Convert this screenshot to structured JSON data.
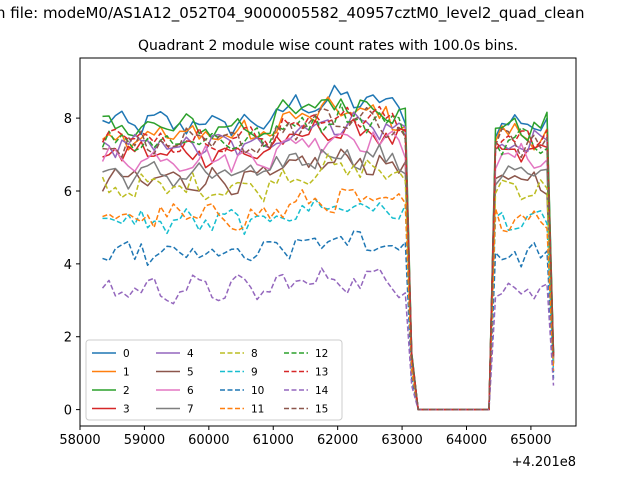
{
  "figure": {
    "suptitle": "n file: modeM0/AS1A12_052T04_9000005582_40957cztM0_level2_quad_clean"
  },
  "chart_data": {
    "type": "line",
    "title": "Quadrant 2 module wise count rates with 100.0s bins.",
    "xlabel": "",
    "ylabel": "",
    "x_offset_label": "+4.201e8",
    "xlim": [
      58000,
      65700
    ],
    "ylim": [
      -0.45,
      9.65
    ],
    "xticks": [
      58000,
      59000,
      60000,
      61000,
      62000,
      63000,
      64000,
      65000
    ],
    "xtick_labels": [
      "58000",
      "59000",
      "60000",
      "61000",
      "62000",
      "63000",
      "64000",
      "65000"
    ],
    "yticks": [
      0,
      2,
      4,
      6,
      8
    ],
    "ytick_labels": [
      "0",
      "2",
      "4",
      "6",
      "8"
    ],
    "grid": false,
    "legend_position": "lower-left",
    "legend_columns": 4,
    "gti_segments": [
      {
        "start": 58350,
        "end": 63150
      },
      {
        "start": 64450,
        "end": 65350
      }
    ],
    "series": [
      {
        "name": "0",
        "color": "#1f77b4",
        "dash": "solid",
        "level_on": 7.85,
        "level_off": 0.0
      },
      {
        "name": "1",
        "color": "#ff7f0e",
        "dash": "solid",
        "level_on": 7.55,
        "level_off": 0.0
      },
      {
        "name": "2",
        "color": "#2ca02c",
        "dash": "solid",
        "level_on": 7.75,
        "level_off": 0.0
      },
      {
        "name": "3",
        "color": "#d62728",
        "dash": "solid",
        "level_on": 7.05,
        "level_off": 0.0
      },
      {
        "name": "4",
        "color": "#9467bd",
        "dash": "solid",
        "level_on": 7.25,
        "level_off": 0.0
      },
      {
        "name": "5",
        "color": "#8c564b",
        "dash": "solid",
        "level_on": 6.3,
        "level_off": 0.0
      },
      {
        "name": "6",
        "color": "#e377c2",
        "dash": "solid",
        "level_on": 6.9,
        "level_off": 0.0
      },
      {
        "name": "7",
        "color": "#7f7f7f",
        "dash": "solid",
        "level_on": 6.45,
        "level_off": 0.0
      },
      {
        "name": "8",
        "color": "#bcbd22",
        "dash": "dashed",
        "level_on": 6.1,
        "level_off": 0.0
      },
      {
        "name": "9",
        "color": "#17becf",
        "dash": "dashed",
        "level_on": 5.15,
        "level_off": 0.0
      },
      {
        "name": "10",
        "color": "#1f77b4",
        "dash": "dashed",
        "level_on": 4.25,
        "level_off": 0.0
      },
      {
        "name": "11",
        "color": "#ff7f0e",
        "dash": "dashed",
        "level_on": 5.3,
        "level_off": 0.0
      },
      {
        "name": "12",
        "color": "#2ca02c",
        "dash": "dashed",
        "level_on": 7.4,
        "level_off": 0.0
      },
      {
        "name": "13",
        "color": "#d62728",
        "dash": "dashed",
        "level_on": 7.45,
        "level_off": 0.0
      },
      {
        "name": "14",
        "color": "#9467bd",
        "dash": "dashed",
        "level_on": 3.3,
        "level_off": 0.0
      },
      {
        "name": "15",
        "color": "#8c564b",
        "dash": "dashed",
        "level_on": 7.3,
        "level_off": 0.0
      }
    ]
  }
}
